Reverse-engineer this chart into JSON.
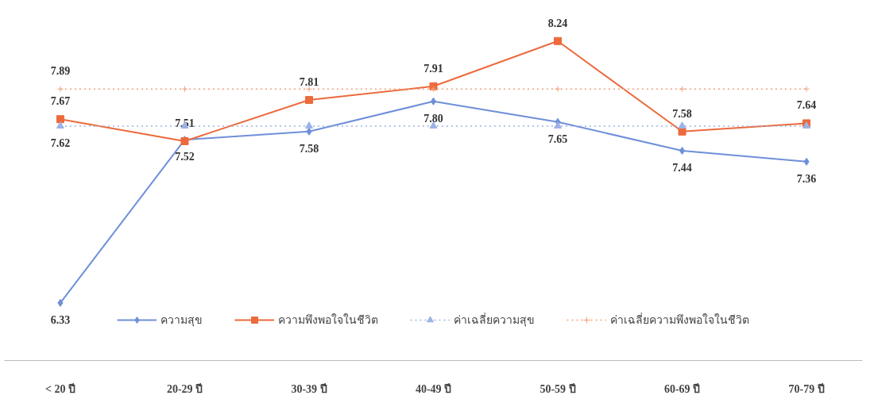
{
  "chart_data": {
    "type": "line",
    "categories": [
      "< 20 ปี",
      "20-29 ปี",
      "30-39 ปี",
      "40-49 ปี",
      "50-59 ปี",
      "60-69 ปี",
      "70-79 ปี"
    ],
    "series": [
      {
        "name": "ความสุข",
        "color": "#6f8fd8",
        "marker": "diamond",
        "line_style": "solid",
        "values": [
          6.33,
          7.52,
          7.58,
          7.8,
          7.65,
          7.44,
          7.36
        ],
        "value_labels": [
          "6.33",
          "7.52",
          "7.58",
          "7.80",
          "7.65",
          "7.44",
          "7.36"
        ]
      },
      {
        "name": "ความพึงพอใจในชีวิต",
        "color": "#ec6a3c",
        "marker": "square",
        "line_style": "solid",
        "values": [
          7.67,
          7.51,
          7.81,
          7.91,
          8.24,
          7.58,
          7.64
        ],
        "value_labels": [
          "7.67",
          "7.51",
          "7.81",
          "7.91",
          "8.24",
          "7.58",
          "7.64"
        ]
      },
      {
        "name": "ค่าเฉลี่ยความสุข",
        "color": "#9bb3e6",
        "marker": "triangle",
        "line_style": "dotted",
        "values": [
          7.62,
          7.62,
          7.62,
          7.62,
          7.62,
          7.62,
          7.62
        ],
        "value_labels": [
          "7.62",
          null,
          null,
          null,
          null,
          null,
          null
        ]
      },
      {
        "name": "ค่าเฉลี่ยความพึงพอใจในชีวิต",
        "color": "#f2a07a",
        "marker": "cross",
        "line_style": "dotted",
        "values": [
          7.89,
          7.89,
          7.89,
          7.89,
          7.89,
          7.89,
          7.89
        ],
        "value_labels": [
          "7.89",
          null,
          null,
          null,
          null,
          null,
          null
        ]
      }
    ],
    "tick_labels": "x",
    "grid": false,
    "legend": "bottom"
  }
}
